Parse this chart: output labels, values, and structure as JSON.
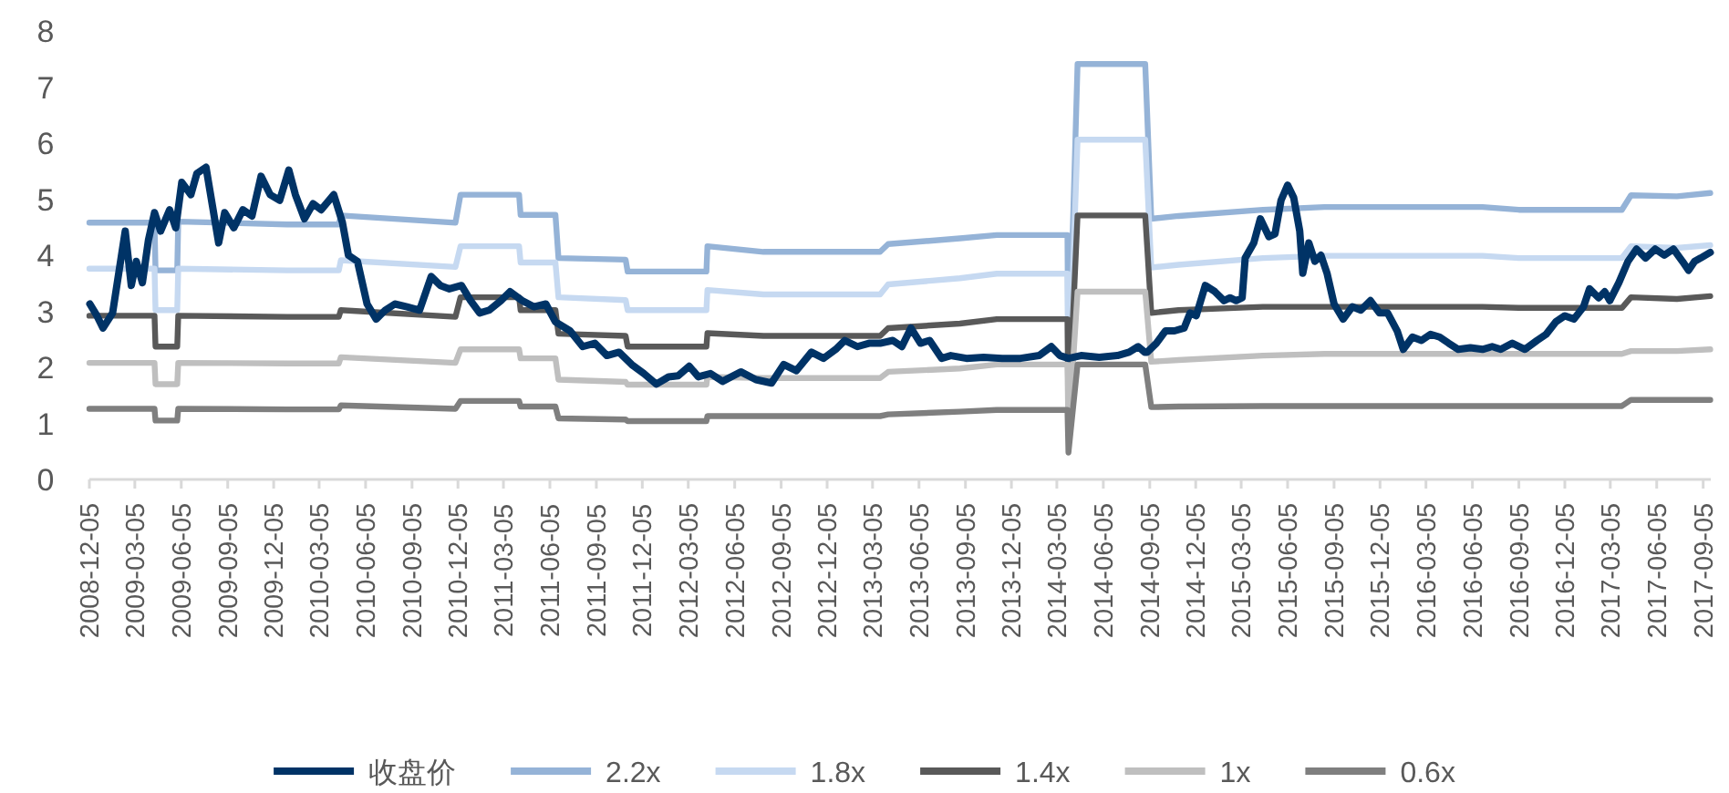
{
  "chart_data": {
    "type": "line",
    "legend": "bottom",
    "grid": false,
    "ylim": [
      0,
      8
    ],
    "yticks": [
      0,
      1,
      2,
      3,
      4,
      5,
      6,
      7,
      8
    ],
    "xlim": [
      "2008-12-05",
      "2017-09-20"
    ],
    "xticks": [
      "2008-12-05",
      "2009-03-05",
      "2009-06-05",
      "2009-09-05",
      "2009-12-05",
      "2010-03-05",
      "2010-06-05",
      "2010-09-05",
      "2010-12-05",
      "2011-03-05",
      "2011-06-05",
      "2011-09-05",
      "2011-12-05",
      "2012-03-05",
      "2012-06-05",
      "2012-09-05",
      "2012-12-05",
      "2013-03-05",
      "2013-06-05",
      "2013-09-05",
      "2013-12-05",
      "2014-03-05",
      "2014-06-05",
      "2014-09-05",
      "2014-12-05",
      "2015-03-05",
      "2015-06-05",
      "2015-09-05",
      "2015-12-05",
      "2016-03-05",
      "2016-06-05",
      "2016-09-05",
      "2016-12-05",
      "2017-03-05",
      "2017-06-05",
      "2017-09-05"
    ],
    "x": [
      "2008-12-05",
      "2009-04-13",
      "2009-04-15",
      "2009-05-28",
      "2009-05-30",
      "2010-01-01",
      "2010-04-13",
      "2010-04-17",
      "2010-11-30",
      "2010-12-10",
      "2011-04-05",
      "2011-04-08",
      "2011-06-16",
      "2011-06-22",
      "2011-11-02",
      "2011-11-06",
      "2012-04-10",
      "2012-04-12",
      "2012-08-01",
      "2013-03-20",
      "2013-04-05",
      "2013-08-25",
      "2013-11-06",
      "2014-03-26",
      "2014-03-28",
      "2014-04-15",
      "2014-08-27",
      "2014-09-08",
      "2014-11-01",
      "2015-04-17",
      "2015-08-17",
      "2016-06-25",
      "2016-09-05",
      "2017-03-28",
      "2017-04-15",
      "2017-07-15",
      "2017-09-19"
    ],
    "series": [
      {
        "name": "收盘价",
        "color": "#003366",
        "x": [
          "2008-12-06",
          "2008-12-20",
          "2009-01-01",
          "2009-01-20",
          "2009-02-14",
          "2009-02-26",
          "2009-03-08",
          "2009-03-20",
          "2009-04-01",
          "2009-04-13",
          "2009-04-25",
          "2009-05-13",
          "2009-05-25",
          "2009-06-06",
          "2009-06-24",
          "2009-07-06",
          "2009-07-24",
          "2009-08-06",
          "2009-08-18",
          "2009-08-30",
          "2009-09-17",
          "2009-10-05",
          "2009-10-23",
          "2009-11-10",
          "2009-11-28",
          "2009-12-17",
          "2010-01-04",
          "2010-01-17",
          "2010-02-04",
          "2010-02-21",
          "2010-03-09",
          "2010-04-03",
          "2010-04-20",
          "2010-05-02",
          "2010-05-20",
          "2010-06-08",
          "2010-06-26",
          "2010-07-14",
          "2010-08-02",
          "2010-08-26",
          "2010-09-20",
          "2010-10-13",
          "2010-10-31",
          "2010-11-18",
          "2010-12-12",
          "2010-12-30",
          "2011-01-17",
          "2011-02-05",
          "2011-02-28",
          "2011-03-18",
          "2011-04-11",
          "2011-05-04",
          "2011-05-28",
          "2011-06-16",
          "2011-07-15",
          "2011-08-09",
          "2011-09-02",
          "2011-09-26",
          "2011-10-20",
          "2011-11-14",
          "2011-12-08",
          "2012-01-02",
          "2012-01-26",
          "2012-02-14",
          "2012-03-07",
          "2012-03-25",
          "2012-04-18",
          "2012-05-12",
          "2012-06-17",
          "2012-07-17",
          "2012-08-17",
          "2012-09-10",
          "2012-10-05",
          "2012-11-04",
          "2012-11-28",
          "2012-12-22",
          "2013-01-09",
          "2013-02-03",
          "2013-02-26",
          "2013-03-20",
          "2013-04-14",
          "2013-05-02",
          "2013-05-20",
          "2013-06-08",
          "2013-06-26",
          "2013-07-20",
          "2013-08-07",
          "2013-09-07",
          "2013-10-11",
          "2013-11-17",
          "2013-12-23",
          "2014-01-29",
          "2014-02-22",
          "2014-03-11",
          "2014-03-28",
          "2014-04-22",
          "2014-05-28",
          "2014-07-03",
          "2014-07-26",
          "2014-08-13",
          "2014-08-26",
          "2014-08-31",
          "2014-09-18",
          "2014-10-06",
          "2014-10-24",
          "2014-11-12",
          "2014-11-24",
          "2014-12-06",
          "2014-12-24",
          "2015-01-12",
          "2015-01-30",
          "2015-02-11",
          "2015-02-23",
          "2015-03-07",
          "2015-03-13",
          "2015-03-30",
          "2015-04-12",
          "2015-04-29",
          "2015-05-11",
          "2015-05-23",
          "2015-06-05",
          "2015-06-17",
          "2015-06-29",
          "2015-07-05",
          "2015-07-17",
          "2015-07-29",
          "2015-08-10",
          "2015-08-22",
          "2015-09-05",
          "2015-09-23",
          "2015-10-11",
          "2015-10-28",
          "2015-11-16",
          "2015-12-04",
          "2015-12-20",
          "2016-01-08",
          "2016-01-20",
          "2016-02-07",
          "2016-02-25",
          "2016-03-14",
          "2016-04-01",
          "2016-04-19",
          "2016-05-08",
          "2016-06-01",
          "2016-06-25",
          "2016-07-14",
          "2016-07-31",
          "2016-08-23",
          "2016-09-17",
          "2016-10-11",
          "2016-10-29",
          "2016-11-17",
          "2016-12-05",
          "2016-12-23",
          "2017-01-11",
          "2017-01-23",
          "2017-02-10",
          "2017-02-22",
          "2017-03-04",
          "2017-03-22",
          "2017-04-09",
          "2017-04-26",
          "2017-05-14",
          "2017-06-02",
          "2017-06-20",
          "2017-07-08",
          "2017-07-26",
          "2017-08-07",
          "2017-08-19",
          "2017-08-31",
          "2017-09-19"
        ],
        "values": [
          3.13,
          2.92,
          2.7,
          2.97,
          4.43,
          3.46,
          3.89,
          3.51,
          4.27,
          4.76,
          4.43,
          4.81,
          4.49,
          5.3,
          5.08,
          5.46,
          5.57,
          4.87,
          4.22,
          4.76,
          4.49,
          4.81,
          4.7,
          5.41,
          5.08,
          4.98,
          5.52,
          5.08,
          4.65,
          4.92,
          4.81,
          5.08,
          4.59,
          4.0,
          3.89,
          3.13,
          2.86,
          3.02,
          3.13,
          3.08,
          3.02,
          3.62,
          3.46,
          3.4,
          3.46,
          3.19,
          2.97,
          3.02,
          3.19,
          3.35,
          3.19,
          3.08,
          3.13,
          2.81,
          2.65,
          2.37,
          2.43,
          2.21,
          2.27,
          2.05,
          1.89,
          1.7,
          1.83,
          1.85,
          2.02,
          1.83,
          1.89,
          1.75,
          1.92,
          1.78,
          1.72,
          2.05,
          1.94,
          2.27,
          2.16,
          2.32,
          2.48,
          2.37,
          2.43,
          2.43,
          2.48,
          2.37,
          2.7,
          2.43,
          2.48,
          2.16,
          2.21,
          2.16,
          2.18,
          2.16,
          2.16,
          2.21,
          2.37,
          2.21,
          2.16,
          2.21,
          2.18,
          2.21,
          2.27,
          2.37,
          2.27,
          2.27,
          2.43,
          2.65,
          2.65,
          2.7,
          2.97,
          2.92,
          3.46,
          3.35,
          3.19,
          3.24,
          3.19,
          3.24,
          3.95,
          4.22,
          4.65,
          4.33,
          4.38,
          4.98,
          5.25,
          5.03,
          4.43,
          3.68,
          4.22,
          3.89,
          4.0,
          3.68,
          3.13,
          2.86,
          3.08,
          3.02,
          3.19,
          2.97,
          2.97,
          2.65,
          2.32,
          2.54,
          2.48,
          2.59,
          2.54,
          2.43,
          2.32,
          2.35,
          2.32,
          2.37,
          2.32,
          2.43,
          2.32,
          2.48,
          2.59,
          2.81,
          2.92,
          2.86,
          3.08,
          3.4,
          3.24,
          3.35,
          3.19,
          3.51,
          3.89,
          4.11,
          3.95,
          4.11,
          4.0,
          4.11,
          3.89,
          3.73,
          3.89,
          3.95,
          4.05
        ]
      },
      {
        "name": "2.2x",
        "color": "#95b3d7",
        "values": [
          4.58,
          4.58,
          3.73,
          3.73,
          4.6,
          4.55,
          4.55,
          4.71,
          4.58,
          5.08,
          5.08,
          4.72,
          4.72,
          3.95,
          3.92,
          3.71,
          3.71,
          4.16,
          4.06,
          4.06,
          4.2,
          4.3,
          4.36,
          4.36,
          1.75,
          7.41,
          7.41,
          4.65,
          4.7,
          4.81,
          4.86,
          4.86,
          4.81,
          4.81,
          5.07,
          5.05,
          5.11
        ]
      },
      {
        "name": "1.8x",
        "color": "#c6d9f1",
        "values": [
          3.76,
          3.76,
          3.02,
          3.02,
          3.76,
          3.73,
          3.73,
          3.91,
          3.79,
          4.16,
          4.16,
          3.87,
          3.87,
          3.25,
          3.2,
          3.02,
          3.02,
          3.38,
          3.3,
          3.3,
          3.48,
          3.59,
          3.67,
          3.67,
          1.43,
          6.06,
          6.06,
          3.78,
          3.83,
          3.95,
          3.99,
          3.99,
          3.95,
          3.95,
          4.16,
          4.13,
          4.18
        ]
      },
      {
        "name": "1.4x",
        "color": "#595959",
        "values": [
          2.92,
          2.92,
          2.37,
          2.37,
          2.92,
          2.9,
          2.9,
          3.02,
          2.9,
          3.25,
          3.25,
          3.02,
          3.02,
          2.6,
          2.56,
          2.37,
          2.37,
          2.61,
          2.56,
          2.56,
          2.7,
          2.78,
          2.86,
          2.86,
          1.11,
          4.71,
          4.71,
          2.97,
          3.02,
          3.08,
          3.08,
          3.08,
          3.06,
          3.06,
          3.25,
          3.22,
          3.27
        ]
      },
      {
        "name": "1x",
        "color": "#bfbfbf",
        "values": [
          2.08,
          2.08,
          1.7,
          1.7,
          2.08,
          2.07,
          2.07,
          2.18,
          2.08,
          2.32,
          2.32,
          2.16,
          2.16,
          1.78,
          1.74,
          1.69,
          1.69,
          1.83,
          1.81,
          1.81,
          1.92,
          1.98,
          2.05,
          2.05,
          0.79,
          3.35,
          3.35,
          2.1,
          2.13,
          2.21,
          2.24,
          2.24,
          2.24,
          2.24,
          2.29,
          2.29,
          2.32
        ]
      },
      {
        "name": "0.6x",
        "color": "#7f7f7f",
        "values": [
          1.26,
          1.26,
          1.05,
          1.05,
          1.26,
          1.25,
          1.25,
          1.32,
          1.26,
          1.4,
          1.4,
          1.3,
          1.3,
          1.09,
          1.07,
          1.04,
          1.04,
          1.13,
          1.13,
          1.13,
          1.16,
          1.21,
          1.24,
          1.24,
          0.48,
          2.05,
          2.05,
          1.29,
          1.3,
          1.31,
          1.31,
          1.31,
          1.31,
          1.31,
          1.42,
          1.42,
          1.42
        ]
      }
    ]
  }
}
